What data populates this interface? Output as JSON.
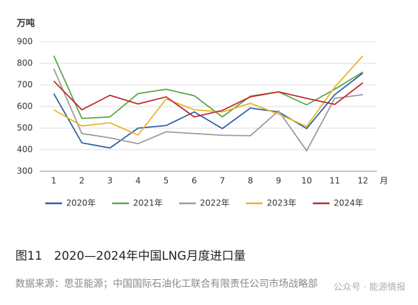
{
  "chart_data": {
    "type": "line",
    "y_unit": "万吨",
    "x_unit": "月",
    "x": [
      1,
      2,
      3,
      4,
      5,
      6,
      7,
      8,
      9,
      10,
      11,
      12
    ],
    "xlim": [
      0.5,
      12.5
    ],
    "xticks": [
      1,
      2,
      3,
      4,
      5,
      6,
      7,
      8,
      9,
      10,
      11,
      12
    ],
    "ylim": [
      300,
      900
    ],
    "yticks": [
      300,
      400,
      500,
      600,
      700,
      800,
      900
    ],
    "grid": true,
    "legend": "bottom",
    "series": [
      {
        "name": "2020年",
        "color": "#2e5fa3",
        "values": [
          660,
          432,
          408,
          500,
          512,
          575,
          498,
          593,
          575,
          498,
          655,
          755
        ]
      },
      {
        "name": "2021年",
        "color": "#5aa64a",
        "values": [
          835,
          545,
          552,
          660,
          680,
          650,
          552,
          648,
          668,
          608,
          680,
          760
        ]
      },
      {
        "name": "2022年",
        "color": "#9a9a9a",
        "values": [
          775,
          475,
          455,
          428,
          483,
          475,
          467,
          465,
          580,
          395,
          638,
          655
        ]
      },
      {
        "name": "2023年",
        "color": "#e8b429",
        "values": [
          585,
          510,
          525,
          468,
          635,
          585,
          575,
          615,
          565,
          508,
          690,
          835
        ]
      },
      {
        "name": "2024年",
        "color": "#c0282d",
        "values": [
          718,
          585,
          652,
          612,
          645,
          552,
          582,
          645,
          668,
          638,
          610,
          710
        ]
      }
    ]
  },
  "caption": "图11　2020—2024年中国LNG月度进口量",
  "source": "数据来源：思亚能源；中国国际石油化工联合有限责任公司市场战略部",
  "watermark": "公众号 · 能源情报"
}
